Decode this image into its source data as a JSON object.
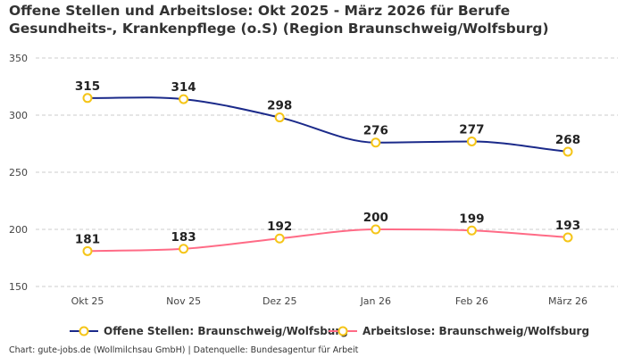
{
  "chart_data": {
    "type": "line",
    "title": "Offene Stellen und Arbeitslose: Okt 2025 - März 2026 für Berufe Gesundheits-, Krankenpflege (o.S) (Region Braunschweig/Wolfsburg)",
    "categories": [
      "Okt 25",
      "Nov 25",
      "Dez 25",
      "Jan 26",
      "Feb 26",
      "März 26"
    ],
    "series": [
      {
        "name": "Offene Stellen: Braunschweig/Wolfsburg",
        "values": [
          315,
          314,
          298,
          276,
          277,
          268
        ],
        "color": "#1b2a8a"
      },
      {
        "name": "Arbeitslose: Braunschweig/Wolfsburg",
        "values": [
          181,
          183,
          192,
          200,
          199,
          193
        ],
        "color": "#ff6b86"
      }
    ],
    "marker_color": "#f5c518",
    "ylim": [
      150,
      350
    ],
    "yticks": [
      150,
      200,
      250,
      300,
      350
    ],
    "grid": true,
    "legend": "bottom",
    "xlabel": "",
    "ylabel": ""
  },
  "footer": "Chart: gute-jobs.de (Wollmilchsau GmbH) | Datenquelle: Bundesagentur für Arbeit"
}
